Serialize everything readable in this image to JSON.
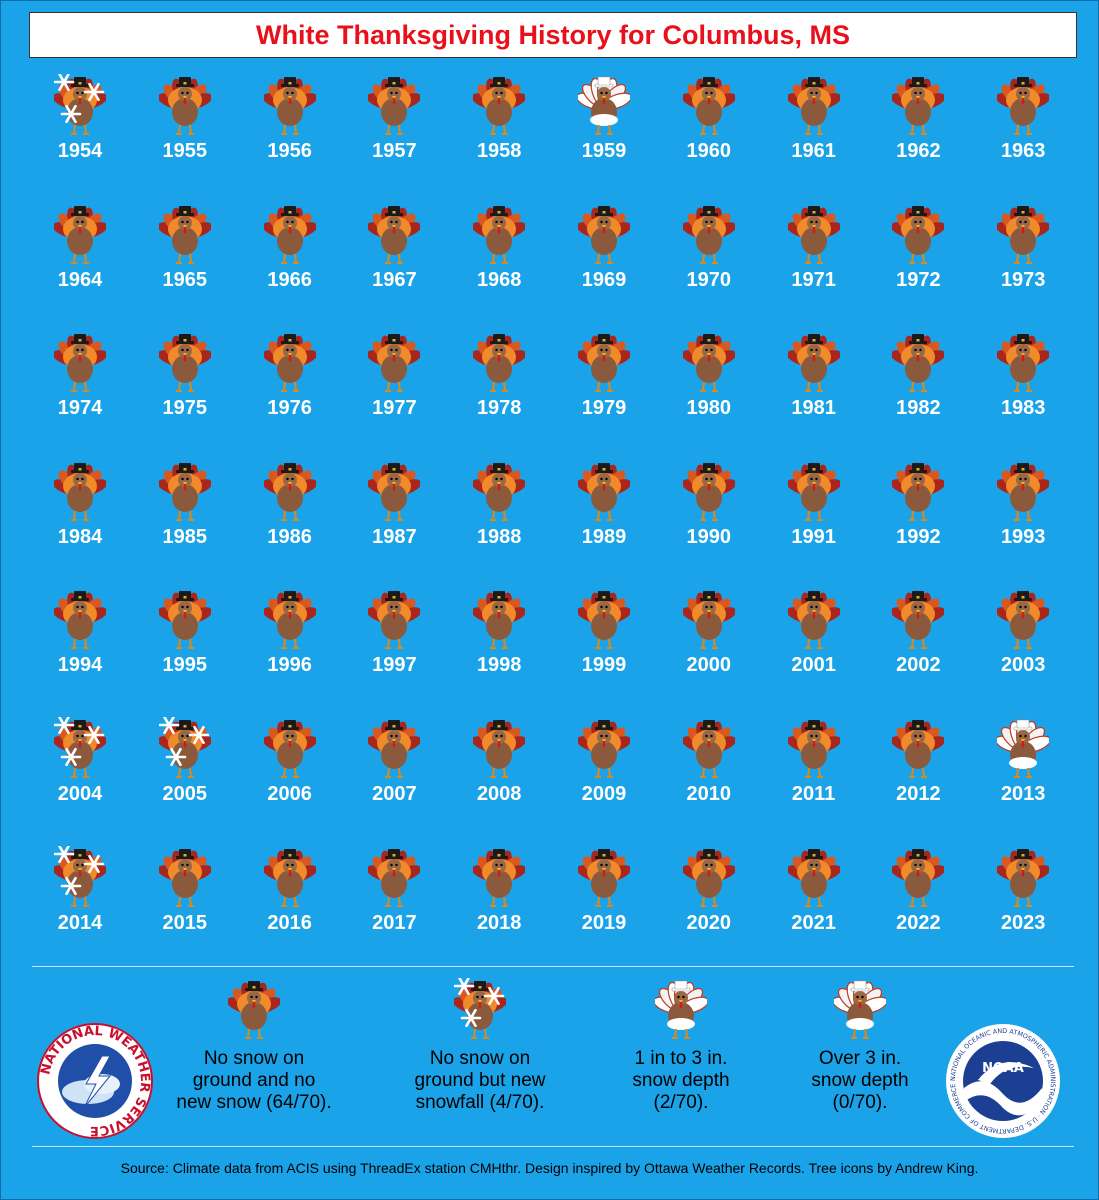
{
  "title": "White Thanksgiving History for Columbus, MS",
  "chart_data": {
    "type": "table",
    "title": "White Thanksgiving History for Columbus, MS",
    "categories": [
      {
        "key": "none",
        "label": "No snow on ground and no new snow (64/70).",
        "count": 64
      },
      {
        "key": "new",
        "label": "No snow on ground but new snowfall (4/70).",
        "count": 4
      },
      {
        "key": "light",
        "label": "1 in to 3 in. snow depth (2/70).",
        "count": 2
      },
      {
        "key": "heavy",
        "label": "Over 3 in. snow depth (0/70).",
        "count": 0
      }
    ],
    "years": [
      {
        "year": "1954",
        "category": "new"
      },
      {
        "year": "1955",
        "category": "none"
      },
      {
        "year": "1956",
        "category": "none"
      },
      {
        "year": "1957",
        "category": "none"
      },
      {
        "year": "1958",
        "category": "none"
      },
      {
        "year": "1959",
        "category": "light"
      },
      {
        "year": "1960",
        "category": "none"
      },
      {
        "year": "1961",
        "category": "none"
      },
      {
        "year": "1962",
        "category": "none"
      },
      {
        "year": "1963",
        "category": "none"
      },
      {
        "year": "1964",
        "category": "none"
      },
      {
        "year": "1965",
        "category": "none"
      },
      {
        "year": "1966",
        "category": "none"
      },
      {
        "year": "1967",
        "category": "none"
      },
      {
        "year": "1968",
        "category": "none"
      },
      {
        "year": "1969",
        "category": "none"
      },
      {
        "year": "1970",
        "category": "none"
      },
      {
        "year": "1971",
        "category": "none"
      },
      {
        "year": "1972",
        "category": "none"
      },
      {
        "year": "1973",
        "category": "none"
      },
      {
        "year": "1974",
        "category": "none"
      },
      {
        "year": "1975",
        "category": "none"
      },
      {
        "year": "1976",
        "category": "none"
      },
      {
        "year": "1977",
        "category": "none"
      },
      {
        "year": "1978",
        "category": "none"
      },
      {
        "year": "1979",
        "category": "none"
      },
      {
        "year": "1980",
        "category": "none"
      },
      {
        "year": "1981",
        "category": "none"
      },
      {
        "year": "1982",
        "category": "none"
      },
      {
        "year": "1983",
        "category": "none"
      },
      {
        "year": "1984",
        "category": "none"
      },
      {
        "year": "1985",
        "category": "none"
      },
      {
        "year": "1986",
        "category": "none"
      },
      {
        "year": "1987",
        "category": "none"
      },
      {
        "year": "1988",
        "category": "none"
      },
      {
        "year": "1989",
        "category": "none"
      },
      {
        "year": "1990",
        "category": "none"
      },
      {
        "year": "1991",
        "category": "none"
      },
      {
        "year": "1992",
        "category": "none"
      },
      {
        "year": "1993",
        "category": "none"
      },
      {
        "year": "1994",
        "category": "none"
      },
      {
        "year": "1995",
        "category": "none"
      },
      {
        "year": "1996",
        "category": "none"
      },
      {
        "year": "1997",
        "category": "none"
      },
      {
        "year": "1998",
        "category": "none"
      },
      {
        "year": "1999",
        "category": "none"
      },
      {
        "year": "2000",
        "category": "none"
      },
      {
        "year": "2001",
        "category": "none"
      },
      {
        "year": "2002",
        "category": "none"
      },
      {
        "year": "2003",
        "category": "none"
      },
      {
        "year": "2004",
        "category": "new"
      },
      {
        "year": "2005",
        "category": "new"
      },
      {
        "year": "2006",
        "category": "none"
      },
      {
        "year": "2007",
        "category": "none"
      },
      {
        "year": "2008",
        "category": "none"
      },
      {
        "year": "2009",
        "category": "none"
      },
      {
        "year": "2010",
        "category": "none"
      },
      {
        "year": "2011",
        "category": "none"
      },
      {
        "year": "2012",
        "category": "none"
      },
      {
        "year": "2013",
        "category": "light"
      },
      {
        "year": "2014",
        "category": "new"
      },
      {
        "year": "2015",
        "category": "none"
      },
      {
        "year": "2016",
        "category": "none"
      },
      {
        "year": "2017",
        "category": "none"
      },
      {
        "year": "2018",
        "category": "none"
      },
      {
        "year": "2019",
        "category": "none"
      },
      {
        "year": "2020",
        "category": "none"
      },
      {
        "year": "2021",
        "category": "none"
      },
      {
        "year": "2022",
        "category": "none"
      },
      {
        "year": "2023",
        "category": "none"
      }
    ]
  },
  "legend": {
    "none_lines": [
      "No snow on",
      "ground and no",
      "new snow (64/70)."
    ],
    "new_lines": [
      "No snow on",
      "ground but new",
      "snowfall (4/70)."
    ],
    "light_lines": [
      "1 in to 3 in.",
      "snow depth",
      "(2/70)."
    ],
    "heavy_lines": [
      "Over 3 in.",
      "snow depth",
      "(0/70)."
    ]
  },
  "logos": {
    "nws_text": "NATIONAL WEATHER SERVICE",
    "noaa_text": "NOAA",
    "noaa_ring_text": "NATIONAL OCEANIC AND ATMOSPHERIC ADMINISTRATION · U.S. DEPARTMENT OF COMMERCE"
  },
  "source": "Source: Climate data from ACIS using ThreadEx station CMHthr. Design inspired by Ottawa Weather Records. Tree icons by Andrew King.",
  "colors": {
    "background": "#1aa3e8",
    "title": "#e8101a",
    "turkey_body": "#8b5a3c",
    "feather_dark": "#a8261c",
    "feather_mid": "#d9581f",
    "feather_light": "#f08a2a",
    "hat": "#1a1a1a",
    "snow": "#ffffff"
  }
}
